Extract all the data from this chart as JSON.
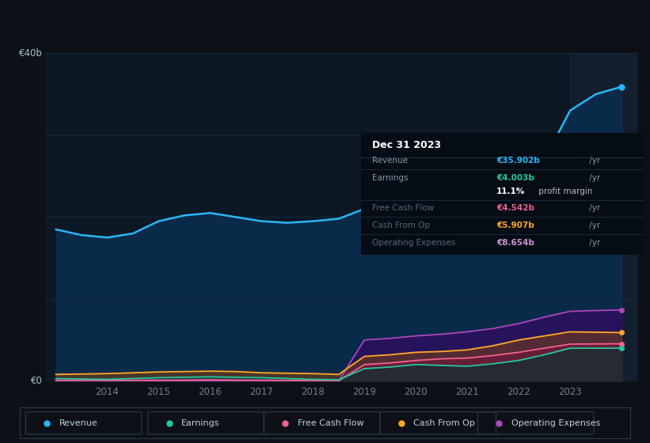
{
  "bg_color": "#0d1117",
  "plot_bg_color": "#0c1824",
  "highlight_bg_color": "#131f2e",
  "years": [
    2013,
    2013.5,
    2014,
    2014.5,
    2015,
    2015.5,
    2016,
    2016.5,
    2017,
    2017.5,
    2018,
    2018.5,
    2019,
    2019.5,
    2020,
    2020.5,
    2021,
    2021.5,
    2022,
    2022.5,
    2023,
    2023.5,
    2024
  ],
  "revenue": [
    18.5,
    17.8,
    17.5,
    18.0,
    19.5,
    20.2,
    20.5,
    20.0,
    19.5,
    19.3,
    19.5,
    19.8,
    21.0,
    21.8,
    22.0,
    21.2,
    21.0,
    22.0,
    24.0,
    27.0,
    33.0,
    35.0,
    35.9
  ],
  "earnings": [
    0.3,
    0.25,
    0.2,
    0.3,
    0.4,
    0.45,
    0.5,
    0.45,
    0.4,
    0.3,
    0.2,
    0.15,
    1.5,
    1.7,
    2.0,
    1.9,
    1.8,
    2.1,
    2.5,
    3.2,
    4.0,
    4.0,
    4.0
  ],
  "free_cash_flow": [
    0.1,
    0.1,
    0.1,
    0.1,
    0.1,
    0.12,
    0.15,
    0.12,
    0.1,
    0.08,
    0.05,
    0.02,
    2.0,
    2.2,
    2.5,
    2.7,
    2.8,
    3.1,
    3.5,
    4.0,
    4.5,
    4.52,
    4.542
  ],
  "cash_from_op": [
    0.8,
    0.85,
    0.9,
    1.0,
    1.1,
    1.15,
    1.2,
    1.15,
    1.0,
    0.95,
    0.9,
    0.8,
    3.0,
    3.2,
    3.5,
    3.6,
    3.8,
    4.3,
    5.0,
    5.5,
    6.0,
    5.95,
    5.907
  ],
  "operating_expenses": [
    0.0,
    0.0,
    0.0,
    0.0,
    0.0,
    0.0,
    0.0,
    0.0,
    0.0,
    0.0,
    0.0,
    0.0,
    5.0,
    5.2,
    5.5,
    5.7,
    6.0,
    6.4,
    7.0,
    7.8,
    8.5,
    8.6,
    8.654
  ],
  "revenue_color": "#29b6f6",
  "earnings_color": "#26c6a0",
  "free_cash_flow_color": "#f06292",
  "cash_from_op_color": "#ffa726",
  "operating_expenses_color": "#ab47bc",
  "revenue_fill_color": "#0a2a4a",
  "ylim_min": 0,
  "ylim_max": 40,
  "xlabel_color": "#6a7f96",
  "ylabel_color": "#aabbcc",
  "grid_color": "#1a2e40",
  "xtick_years": [
    2014,
    2015,
    2016,
    2017,
    2018,
    2019,
    2020,
    2021,
    2022,
    2023
  ],
  "highlight_start": 2023.0,
  "info_box_title": "Dec 31 2023",
  "info_rows": [
    {
      "label": "Revenue",
      "value": "€35.902b",
      "suffix": " /yr",
      "value_color": "#29b6f6",
      "dim": false
    },
    {
      "label": "Earnings",
      "value": "€4.003b",
      "suffix": " /yr",
      "value_color": "#26c6a0",
      "dim": false
    },
    {
      "label": "",
      "value": "11.1%",
      "suffix": " profit margin",
      "value_color": "#ffffff",
      "dim": false,
      "suffix_color": "#cccccc"
    },
    {
      "label": "Free Cash Flow",
      "value": "€4.542b",
      "suffix": " /yr",
      "value_color": "#f06292",
      "dim": true
    },
    {
      "label": "Cash From Op",
      "value": "€5.907b",
      "suffix": " /yr",
      "value_color": "#ffa726",
      "dim": true
    },
    {
      "label": "Operating Expenses",
      "value": "€8.654b",
      "suffix": " /yr",
      "value_color": "#ce93d8",
      "dim": true
    }
  ],
  "legend_items": [
    {
      "label": "Revenue",
      "color": "#29b6f6"
    },
    {
      "label": "Earnings",
      "color": "#26c6a0"
    },
    {
      "label": "Free Cash Flow",
      "color": "#f06292"
    },
    {
      "label": "Cash From Op",
      "color": "#ffa726"
    },
    {
      "label": "Operating Expenses",
      "color": "#ab47bc"
    }
  ]
}
